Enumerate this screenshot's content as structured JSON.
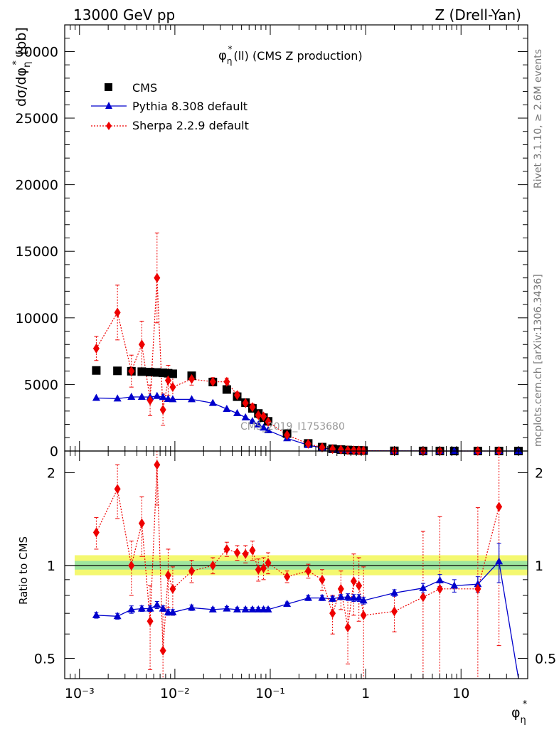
{
  "header": {
    "left": "13000 GeV pp",
    "right": "Z (Drell-Yan)"
  },
  "side": {
    "rivet": "Rivet 3.1.10, ≥ 2.6M events",
    "mcplots": "mcplots.cern.ch [arXiv:1306.3436]"
  },
  "watermark": "CMS_2019_I1753680",
  "colors": {
    "cms": "#000000",
    "pythia": "#0000cc",
    "sherpa": "#ee0000",
    "band_outer": "#f4f870",
    "band_inner": "#9ee69e"
  },
  "chart_data": [
    {
      "type": "scatter",
      "title": "φη*(ll) (CMS Z production)",
      "xlabel": "φη*",
      "ylabel": "dσ/dφη* [pb]",
      "xscale": "log",
      "xlim": [
        0.0007,
        50
      ],
      "ylim": [
        0,
        32000
      ],
      "yticks": [
        0,
        5000,
        10000,
        15000,
        20000,
        25000,
        30000
      ],
      "xticks": [
        "10⁻³",
        "10⁻²",
        "10⁻¹",
        "1",
        "10"
      ],
      "legend": {
        "position": "top-left",
        "entries": [
          "CMS",
          "Pythia 8.308 default",
          "Sherpa 2.2.9 default"
        ]
      },
      "series": [
        {
          "name": "CMS",
          "x": [
            0.0015,
            0.0025,
            0.0035,
            0.0045,
            0.0055,
            0.0065,
            0.0075,
            0.0085,
            0.0095,
            0.015,
            0.025,
            0.035,
            0.045,
            0.055,
            0.065,
            0.075,
            0.085,
            0.095,
            0.15,
            0.25,
            0.35,
            0.45,
            0.55,
            0.65,
            0.75,
            0.85,
            0.95,
            2,
            4,
            6,
            8.5,
            15,
            25,
            40
          ],
          "values": [
            6050,
            6020,
            5990,
            5960,
            5930,
            5900,
            5870,
            5840,
            5800,
            5650,
            5180,
            4620,
            4080,
            3630,
            3200,
            2820,
            2500,
            2230,
            1310,
            570,
            290,
            170,
            110,
            75,
            55,
            42,
            33,
            12,
            4,
            2,
            1,
            0.5,
            0.2,
            0.05
          ]
        },
        {
          "name": "Pythia 8.308 default",
          "x": [
            0.0015,
            0.0025,
            0.0035,
            0.0045,
            0.0055,
            0.0065,
            0.0075,
            0.0085,
            0.0095,
            0.015,
            0.025,
            0.035,
            0.045,
            0.055,
            0.065,
            0.075,
            0.085,
            0.095,
            0.15,
            0.25,
            0.35,
            0.45,
            0.55,
            0.65,
            0.75,
            0.85,
            0.95,
            2,
            4,
            6,
            8.5,
            15,
            25,
            40
          ],
          "values": [
            3980,
            3930,
            4060,
            4060,
            4050,
            4130,
            4050,
            3900,
            3880,
            3880,
            3600,
            3150,
            2830,
            2520,
            2240,
            1980,
            1750,
            1550,
            950,
            440,
            230,
            140,
            90,
            60,
            44,
            33,
            26,
            10,
            3.4,
            1.8,
            0.9,
            0.45,
            0.2,
            0.0
          ],
          "ratio": [
            0.69,
            0.685,
            0.72,
            0.725,
            0.725,
            0.745,
            0.725,
            0.705,
            0.705,
            0.73,
            0.72,
            0.725,
            0.72,
            0.72,
            0.72,
            0.72,
            0.72,
            0.72,
            0.75,
            0.785,
            0.785,
            0.78,
            0.79,
            0.79,
            0.785,
            0.785,
            0.77,
            0.815,
            0.845,
            0.895,
            0.86,
            0.87,
            1.03,
            0.3
          ],
          "ratio_err": [
            0.015,
            0.015,
            0.02,
            0.015,
            0.015,
            0.02,
            0.015,
            0.015,
            0.015,
            0.015,
            0.012,
            0.012,
            0.012,
            0.012,
            0.012,
            0.012,
            0.012,
            0.012,
            0.012,
            0.015,
            0.015,
            0.015,
            0.015,
            0.02,
            0.02,
            0.02,
            0.02,
            0.02,
            0.03,
            0.04,
            0.04,
            0.05,
            0.15,
            0.0
          ]
        },
        {
          "name": "Sherpa 2.2.9 default",
          "x": [
            0.0015,
            0.0025,
            0.0035,
            0.0045,
            0.0055,
            0.0065,
            0.0075,
            0.0085,
            0.0095,
            0.015,
            0.025,
            0.035,
            0.045,
            0.055,
            0.065,
            0.075,
            0.085,
            0.095,
            0.15,
            0.25,
            0.35,
            0.45,
            0.55,
            0.65,
            0.75,
            0.85,
            0.95,
            2,
            4,
            6,
            15,
            25
          ],
          "values": [
            7700,
            10400,
            6000,
            8000,
            3800,
            13000,
            3100,
            5300,
            4800,
            5400,
            5200,
            5200,
            4200,
            3600,
            3300,
            2700,
            2600,
            2200,
            1200,
            540,
            270,
            150,
            100,
            60,
            50,
            40,
            25,
            10,
            3.2,
            1.7,
            0.4,
            0.3
          ],
          "ratio": [
            1.28,
            1.77,
            1.0,
            1.37,
            0.66,
            2.12,
            0.53,
            0.93,
            0.84,
            0.96,
            1.0,
            1.13,
            1.1,
            1.09,
            1.12,
            0.97,
            0.98,
            1.02,
            0.92,
            0.96,
            0.9,
            0.7,
            0.84,
            0.63,
            0.89,
            0.86,
            0.69,
            0.71,
            0.79,
            0.84,
            0.84,
            1.55
          ],
          "ratio_err": [
            0.15,
            0.35,
            0.2,
            0.3,
            0.2,
            0.55,
            0.2,
            0.2,
            0.15,
            0.08,
            0.06,
            0.06,
            0.06,
            0.07,
            0.08,
            0.08,
            0.08,
            0.08,
            0.04,
            0.05,
            0.07,
            0.1,
            0.12,
            0.15,
            0.2,
            0.2,
            0.3,
            0.1,
            0.5,
            0.6,
            0.7,
            1.0
          ]
        }
      ]
    },
    {
      "type": "scatter",
      "ylabel": "Ratio to CMS",
      "xscale": "log",
      "yscale": "log",
      "ylim": [
        0.43,
        2.35
      ],
      "yticks": [
        "0.5",
        "1",
        "2"
      ],
      "reference": 1.0
    }
  ]
}
